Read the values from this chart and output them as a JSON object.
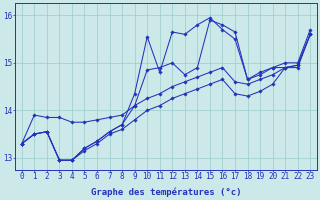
{
  "xlabel": "Graphe des températures (°c)",
  "xlim": [
    -0.5,
    23.5
  ],
  "ylim": [
    12.75,
    16.25
  ],
  "yticks": [
    13,
    14,
    15,
    16
  ],
  "xticks": [
    0,
    1,
    2,
    3,
    4,
    5,
    6,
    7,
    8,
    9,
    10,
    11,
    12,
    13,
    14,
    15,
    16,
    17,
    18,
    19,
    20,
    21,
    22,
    23
  ],
  "bg_color": "#cce8e8",
  "grid_color": "#99cccc",
  "line_color": "#2233bb",
  "series": [
    [
      13.3,
      13.9,
      13.85,
      13.85,
      13.75,
      13.75,
      13.8,
      13.85,
      13.9,
      14.1,
      14.85,
      14.9,
      15.0,
      14.75,
      14.9,
      15.9,
      15.8,
      15.65,
      14.65,
      14.75,
      14.9,
      15.0,
      15.0,
      15.7
    ],
    [
      13.3,
      13.5,
      13.55,
      12.95,
      12.95,
      13.15,
      13.3,
      13.5,
      13.6,
      13.8,
      14.0,
      14.1,
      14.25,
      14.35,
      14.45,
      14.55,
      14.65,
      14.35,
      14.3,
      14.4,
      14.55,
      14.9,
      14.9,
      15.6
    ],
    [
      13.3,
      13.5,
      13.55,
      12.95,
      12.95,
      13.2,
      13.35,
      13.55,
      13.7,
      14.1,
      14.25,
      14.35,
      14.5,
      14.6,
      14.7,
      14.8,
      14.9,
      14.6,
      14.55,
      14.65,
      14.75,
      14.9,
      14.95,
      15.6
    ],
    [
      13.3,
      13.5,
      13.55,
      12.95,
      12.95,
      13.2,
      13.35,
      13.55,
      13.7,
      14.35,
      15.55,
      14.8,
      15.65,
      15.6,
      15.8,
      15.95,
      15.7,
      15.5,
      14.65,
      14.8,
      14.9,
      14.9,
      14.95,
      15.6
    ]
  ],
  "label_fontsize": 6.5,
  "tick_fontsize": 5.5,
  "linewidth": 0.75,
  "markersize": 1.8
}
